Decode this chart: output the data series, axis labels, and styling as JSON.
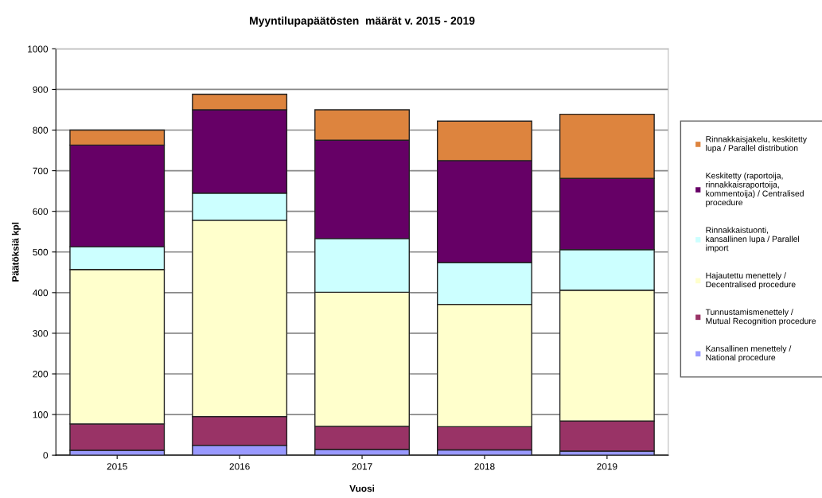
{
  "chart_data": {
    "type": "bar",
    "title": "Myyntilupapäätösten  määrät v. 2015 - 2019",
    "xlabel": "Vuosi",
    "ylabel": "Päätöksiä kpl",
    "categories": [
      "2015",
      "2016",
      "2017",
      "2018",
      "2019"
    ],
    "stacked": true,
    "series": [
      {
        "name": "Kansallinen menettely / National procedure",
        "color": "#9999ff",
        "values": [
          12,
          24,
          14,
          13,
          10
        ]
      },
      {
        "name": "Tunnustamismenettely / Mutual Recognition procedure",
        "color": "#993366",
        "values": [
          65,
          71,
          57,
          57,
          74
        ]
      },
      {
        "name": "Hajautettu menettely / Decentralised procedure",
        "color": "#ffffcc",
        "values": [
          380,
          483,
          330,
          301,
          322
        ]
      },
      {
        "name": "Rinnakkaistuonti, kansallinen lupa / Parallel import",
        "color": "#ccffff",
        "values": [
          56,
          67,
          132,
          103,
          100
        ]
      },
      {
        "name": "Keskitetty (raportoija, rinnakkaisraportoija, kommentoija) / Centralised procedure",
        "color": "#660066",
        "values": [
          250,
          205,
          242,
          251,
          175
        ]
      },
      {
        "name": "Rinnakkaisjakelu, keskitetty lupa / Parallel distribution",
        "color": "#dd843e",
        "values": [
          37,
          38,
          75,
          97,
          158
        ]
      }
    ],
    "ylim": [
      0,
      1000
    ],
    "yticks": [
      0,
      100,
      200,
      300,
      400,
      500,
      600,
      700,
      800,
      900,
      1000
    ],
    "grid": "y",
    "legend": "right"
  }
}
